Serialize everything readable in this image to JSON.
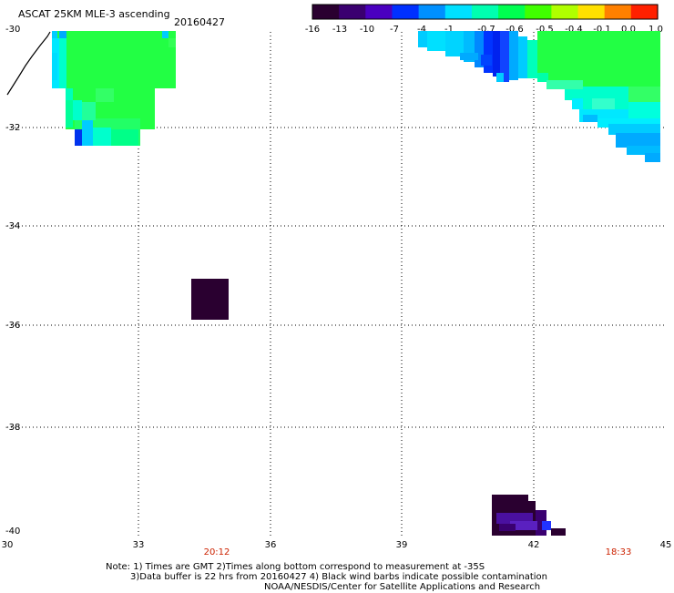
{
  "header": {
    "title": "ASCAT 25KM MLE-3 ascending",
    "date": "20160427"
  },
  "colorbar": {
    "labels": [
      "-16",
      "-13",
      "-10",
      "-7",
      "-4",
      "-1",
      "-0.7",
      "-0.6",
      "-0.5",
      "-0.4",
      "-0.1",
      "0.0",
      "1.0"
    ],
    "colors": [
      "#2a0030",
      "#3a0070",
      "#4a00c0",
      "#0030ff",
      "#0090ff",
      "#00e0ff",
      "#00ffb0",
      "#00ff50",
      "#40ff00",
      "#b0ff00",
      "#ffe000",
      "#ff8000",
      "#ff2000"
    ]
  },
  "map": {
    "lat_labels": [
      "-30",
      "-32",
      "-34",
      "-36",
      "-38",
      "-40"
    ],
    "lon_labels": [
      "30",
      "33",
      "36",
      "39",
      "42",
      "45"
    ],
    "time_labels": [
      "20:12",
      "18:33"
    ]
  },
  "notes": {
    "line1": "Note: 1) Times are GMT 2)Times along bottom correspond to measurement at -35S",
    "line2": "3)Data buffer is 22 hrs from 20160427 4) Black wind barbs indicate possible contamination",
    "line3": "NOAA/NESDIS/Center for Satellite Applications and Research"
  }
}
